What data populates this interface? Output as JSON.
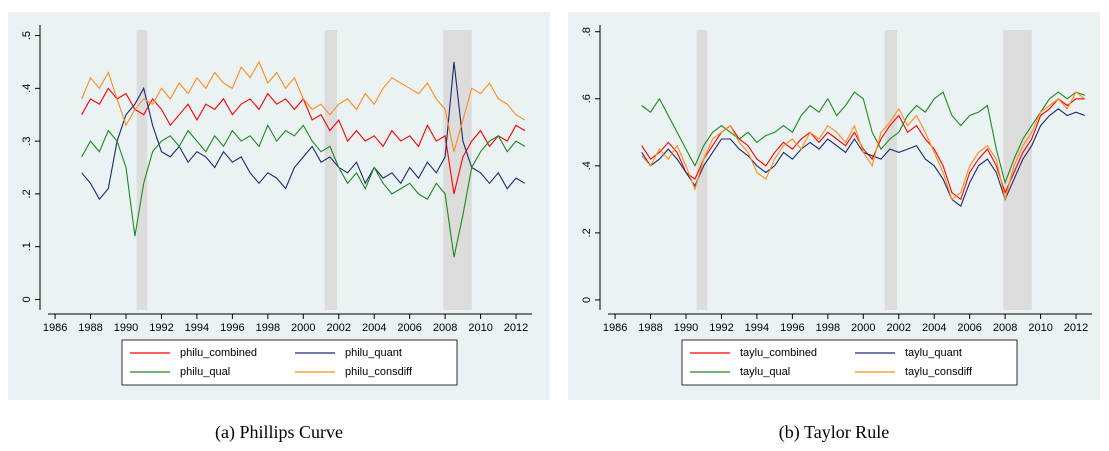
{
  "chart_data": [
    {
      "type": "line",
      "caption": "(a) Phillips Curve",
      "x": [
        1987.5,
        1988,
        1988.5,
        1989,
        1989.5,
        1990,
        1990.5,
        1991,
        1991.5,
        1992,
        1992.5,
        1993,
        1993.5,
        1994,
        1994.5,
        1995,
        1995.5,
        1996,
        1996.5,
        1997,
        1997.5,
        1998,
        1998.5,
        1999,
        1999.5,
        2000,
        2000.5,
        2001,
        2001.5,
        2002,
        2002.5,
        2003,
        2003.5,
        2004,
        2004.5,
        2005,
        2005.5,
        2006,
        2006.5,
        2007,
        2007.5,
        2008,
        2008.5,
        2009,
        2009.5,
        2010,
        2010.5,
        2011,
        2011.5,
        2012,
        2012.5
      ],
      "series": [
        {
          "name": "philu_combined",
          "color": "#ff0000",
          "values": [
            0.35,
            0.38,
            0.37,
            0.4,
            0.38,
            0.39,
            0.36,
            0.35,
            0.38,
            0.36,
            0.33,
            0.35,
            0.37,
            0.34,
            0.37,
            0.36,
            0.38,
            0.35,
            0.37,
            0.38,
            0.36,
            0.39,
            0.37,
            0.38,
            0.36,
            0.38,
            0.34,
            0.35,
            0.32,
            0.34,
            0.3,
            0.32,
            0.3,
            0.31,
            0.29,
            0.32,
            0.3,
            0.31,
            0.29,
            0.33,
            0.3,
            0.31,
            0.2,
            0.27,
            0.3,
            0.32,
            0.29,
            0.31,
            0.3,
            0.33,
            0.32
          ]
        },
        {
          "name": "philu_quant",
          "color": "#1a2a6c",
          "values": [
            0.24,
            0.22,
            0.19,
            0.21,
            0.3,
            0.35,
            0.37,
            0.4,
            0.33,
            0.28,
            0.27,
            0.29,
            0.26,
            0.28,
            0.27,
            0.25,
            0.28,
            0.26,
            0.27,
            0.24,
            0.22,
            0.24,
            0.23,
            0.21,
            0.25,
            0.27,
            0.29,
            0.26,
            0.27,
            0.25,
            0.24,
            0.26,
            0.22,
            0.25,
            0.23,
            0.24,
            0.22,
            0.25,
            0.23,
            0.26,
            0.24,
            0.27,
            0.45,
            0.3,
            0.25,
            0.24,
            0.22,
            0.24,
            0.21,
            0.23,
            0.22
          ]
        },
        {
          "name": "philu_qual",
          "color": "#1e8a1e",
          "values": [
            0.27,
            0.3,
            0.28,
            0.32,
            0.3,
            0.25,
            0.12,
            0.22,
            0.28,
            0.3,
            0.31,
            0.29,
            0.32,
            0.3,
            0.28,
            0.31,
            0.29,
            0.32,
            0.3,
            0.31,
            0.29,
            0.33,
            0.3,
            0.32,
            0.31,
            0.33,
            0.3,
            0.28,
            0.29,
            0.25,
            0.22,
            0.24,
            0.21,
            0.25,
            0.22,
            0.2,
            0.21,
            0.22,
            0.2,
            0.19,
            0.22,
            0.2,
            0.08,
            0.16,
            0.25,
            0.28,
            0.3,
            0.31,
            0.28,
            0.3,
            0.29
          ]
        },
        {
          "name": "philu_consdiff",
          "color": "#ff8c1a",
          "values": [
            0.38,
            0.42,
            0.4,
            0.43,
            0.38,
            0.33,
            0.36,
            0.38,
            0.37,
            0.4,
            0.38,
            0.41,
            0.39,
            0.42,
            0.4,
            0.43,
            0.41,
            0.4,
            0.44,
            0.42,
            0.45,
            0.41,
            0.43,
            0.4,
            0.42,
            0.38,
            0.36,
            0.37,
            0.35,
            0.37,
            0.38,
            0.36,
            0.39,
            0.37,
            0.4,
            0.42,
            0.41,
            0.4,
            0.39,
            0.41,
            0.38,
            0.36,
            0.28,
            0.34,
            0.4,
            0.39,
            0.41,
            0.38,
            0.37,
            0.35,
            0.34
          ]
        }
      ],
      "shaded": [
        [
          1990.6,
          1991.2
        ],
        [
          2001.2,
          2001.9
        ],
        [
          2007.9,
          2009.5
        ]
      ],
      "xlim": [
        1985.6,
        2012.9
      ],
      "xticks": [
        1986,
        1988,
        1990,
        1992,
        1994,
        1996,
        1998,
        2000,
        2002,
        2004,
        2006,
        2008,
        2010,
        2012
      ],
      "ylim": [
        -0.02,
        0.52
      ],
      "yticks": [
        0,
        {
          "value": 0.1,
          "label": ".1"
        },
        {
          "value": 0.2,
          "label": ".2"
        },
        {
          "value": 0.3,
          "label": ".3"
        },
        {
          "value": 0.4,
          "label": ".4"
        },
        {
          "value": 0.5,
          "label": ".5"
        }
      ]
    },
    {
      "type": "line",
      "caption": "(b) Taylor Rule",
      "x": [
        1987.5,
        1988,
        1988.5,
        1989,
        1989.5,
        1990,
        1990.5,
        1991,
        1991.5,
        1992,
        1992.5,
        1993,
        1993.5,
        1994,
        1994.5,
        1995,
        1995.5,
        1996,
        1996.5,
        1997,
        1997.5,
        1998,
        1998.5,
        1999,
        1999.5,
        2000,
        2000.5,
        2001,
        2001.5,
        2002,
        2002.5,
        2003,
        2003.5,
        2004,
        2004.5,
        2005,
        2005.5,
        2006,
        2006.5,
        2007,
        2007.5,
        2008,
        2008.5,
        2009,
        2009.5,
        2010,
        2010.5,
        2011,
        2011.5,
        2012,
        2012.5
      ],
      "series": [
        {
          "name": "taylu_combined",
          "color": "#ff0000",
          "values": [
            0.46,
            0.42,
            0.44,
            0.47,
            0.44,
            0.38,
            0.36,
            0.42,
            0.46,
            0.5,
            0.52,
            0.48,
            0.46,
            0.42,
            0.4,
            0.44,
            0.47,
            0.45,
            0.48,
            0.5,
            0.47,
            0.5,
            0.48,
            0.46,
            0.5,
            0.45,
            0.42,
            0.48,
            0.52,
            0.55,
            0.5,
            0.52,
            0.48,
            0.45,
            0.4,
            0.32,
            0.3,
            0.38,
            0.42,
            0.45,
            0.4,
            0.32,
            0.38,
            0.44,
            0.48,
            0.55,
            0.57,
            0.6,
            0.58,
            0.6,
            0.6
          ]
        },
        {
          "name": "taylu_quant",
          "color": "#1a2a6c",
          "values": [
            0.44,
            0.4,
            0.42,
            0.45,
            0.42,
            0.38,
            0.34,
            0.4,
            0.44,
            0.48,
            0.48,
            0.45,
            0.43,
            0.4,
            0.38,
            0.4,
            0.44,
            0.42,
            0.45,
            0.47,
            0.45,
            0.48,
            0.46,
            0.44,
            0.48,
            0.44,
            0.43,
            0.42,
            0.45,
            0.44,
            0.45,
            0.46,
            0.42,
            0.4,
            0.36,
            0.3,
            0.28,
            0.35,
            0.4,
            0.42,
            0.38,
            0.3,
            0.36,
            0.42,
            0.46,
            0.52,
            0.55,
            0.57,
            0.55,
            0.56,
            0.55
          ]
        },
        {
          "name": "taylu_qual",
          "color": "#1e8a1e",
          "values": [
            0.58,
            0.56,
            0.6,
            0.55,
            0.5,
            0.45,
            0.4,
            0.46,
            0.5,
            0.52,
            0.5,
            0.48,
            0.5,
            0.47,
            0.49,
            0.5,
            0.52,
            0.5,
            0.55,
            0.58,
            0.56,
            0.6,
            0.55,
            0.58,
            0.62,
            0.6,
            0.5,
            0.45,
            0.48,
            0.5,
            0.55,
            0.58,
            0.56,
            0.6,
            0.62,
            0.55,
            0.52,
            0.55,
            0.56,
            0.58,
            0.45,
            0.35,
            0.42,
            0.48,
            0.52,
            0.56,
            0.6,
            0.62,
            0.6,
            0.62,
            0.61
          ]
        },
        {
          "name": "taylu_consdiff",
          "color": "#ff8c1a",
          "values": [
            0.43,
            0.4,
            0.45,
            0.42,
            0.46,
            0.4,
            0.33,
            0.42,
            0.48,
            0.5,
            0.52,
            0.47,
            0.44,
            0.38,
            0.36,
            0.42,
            0.46,
            0.48,
            0.45,
            0.5,
            0.48,
            0.52,
            0.5,
            0.47,
            0.52,
            0.44,
            0.4,
            0.5,
            0.53,
            0.57,
            0.52,
            0.55,
            0.5,
            0.44,
            0.38,
            0.3,
            0.32,
            0.4,
            0.44,
            0.46,
            0.42,
            0.3,
            0.4,
            0.46,
            0.5,
            0.56,
            0.58,
            0.6,
            0.57,
            0.62,
            0.6
          ]
        }
      ],
      "shaded": [
        [
          1990.6,
          1991.2
        ],
        [
          2001.2,
          2001.9
        ],
        [
          2007.9,
          2009.5
        ]
      ],
      "xlim": [
        1985.6,
        2012.9
      ],
      "xticks": [
        1986,
        1988,
        1990,
        1992,
        1994,
        1996,
        1998,
        2000,
        2002,
        2004,
        2006,
        2008,
        2010,
        2012
      ],
      "ylim": [
        -0.03,
        0.82
      ],
      "yticks": [
        0,
        {
          "value": 0.2,
          "label": ".2"
        },
        {
          "value": 0.4,
          "label": ".4"
        },
        {
          "value": 0.6,
          "label": ".6"
        },
        {
          "value": 0.8,
          "label": ".8"
        }
      ]
    }
  ]
}
